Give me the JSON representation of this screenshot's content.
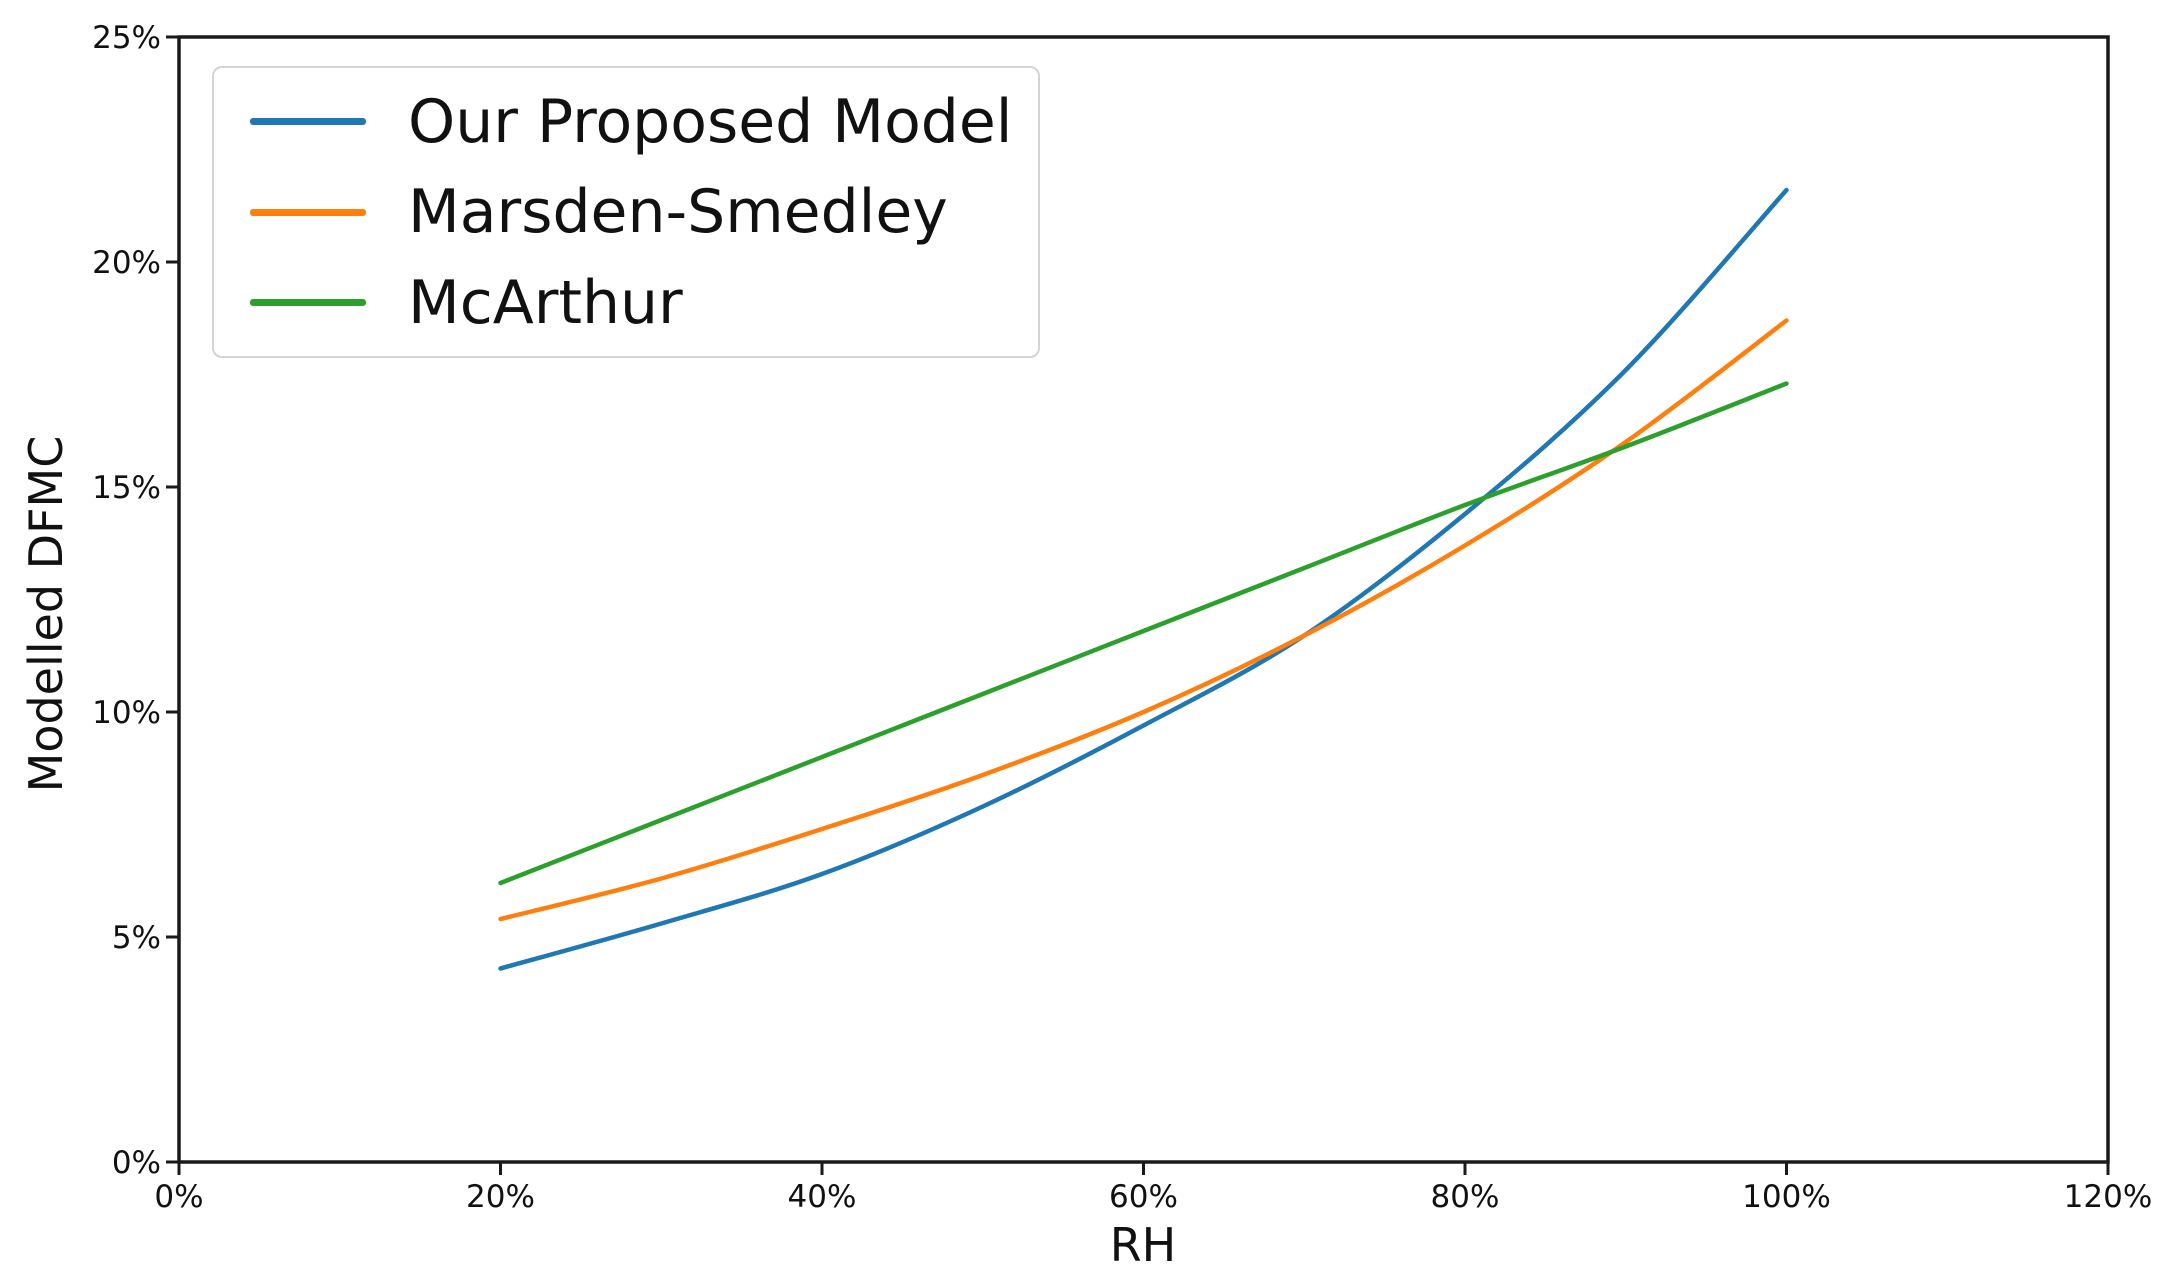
{
  "figure": {
    "background": "#ffffff",
    "frame_color": "#1a1a1a",
    "text_color": "#111111",
    "legend_border_color": "#d4d4d4"
  },
  "chart_data": {
    "type": "line",
    "title": "",
    "xlabel": "RH",
    "ylabel": "Modelled DFMC",
    "xlim": [
      0,
      120
    ],
    "ylim": [
      0,
      25
    ],
    "grid": false,
    "legend_position": "upper-left",
    "x_ticks": [
      0,
      20,
      40,
      60,
      80,
      100,
      120
    ],
    "x_tick_labels": [
      "0%",
      "20%",
      "40%",
      "60%",
      "80%",
      "100%",
      "120%"
    ],
    "y_ticks": [
      0,
      5,
      10,
      15,
      20,
      25
    ],
    "y_tick_labels": [
      "0%",
      "5%",
      "10%",
      "15%",
      "20%",
      "25%"
    ],
    "x": [
      20,
      30,
      40,
      50,
      60,
      70,
      80,
      90,
      100
    ],
    "series": [
      {
        "name": "Our Proposed Model",
        "color": "#1f77b4",
        "values": [
          4.3,
          5.3,
          6.4,
          7.9,
          9.7,
          11.7,
          14.4,
          17.6,
          21.6
        ]
      },
      {
        "name": "Marsden-Smedley",
        "color": "#ff7f0e",
        "values": [
          5.4,
          6.3,
          7.4,
          8.6,
          10.0,
          11.7,
          13.7,
          16.0,
          18.7
        ]
      },
      {
        "name": "McArthur",
        "color": "#2ca02c",
        "values": [
          6.2,
          7.6,
          9.0,
          10.4,
          11.8,
          13.2,
          14.6,
          15.9,
          17.3
        ]
      }
    ]
  }
}
